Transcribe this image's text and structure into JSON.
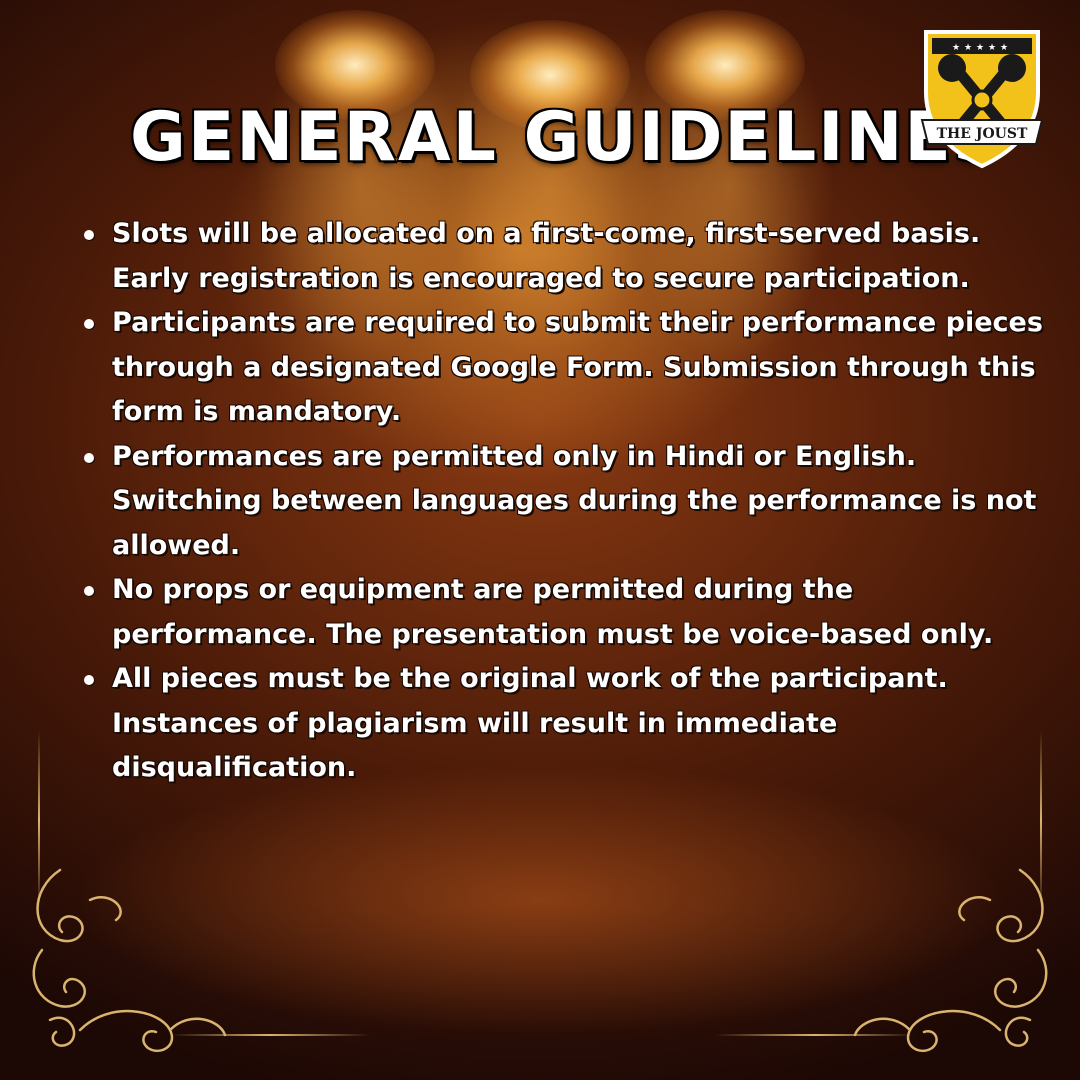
{
  "title": "GENERAL GUIDELINES",
  "logo": {
    "text": "THE JOUST"
  },
  "guidelines": [
    "Slots will be allocated on a first-come, first-served basis. Early registration is encouraged to secure participation.",
    "Participants are required to submit their performance pieces through a designated Google Form. Submission through this form is mandatory.",
    "Performances are permitted only in Hindi or English. Switching between languages during the performance is not allowed.",
    "No props or equipment are permitted during the performance. The presentation must be voice-based only.",
    "All pieces must be the original work of the participant. Instances of plagiarism will result in immediate disqualification."
  ],
  "colors": {
    "background": "#4a1a08",
    "spotlight": "#ffbe55",
    "text": "#ffffff",
    "ornament_gold": "#d9b46e",
    "logo_yellow": "#f2c21a"
  },
  "icons": [
    "spotlight",
    "shield-logo",
    "microphone-icon",
    "flourish-ornament"
  ]
}
